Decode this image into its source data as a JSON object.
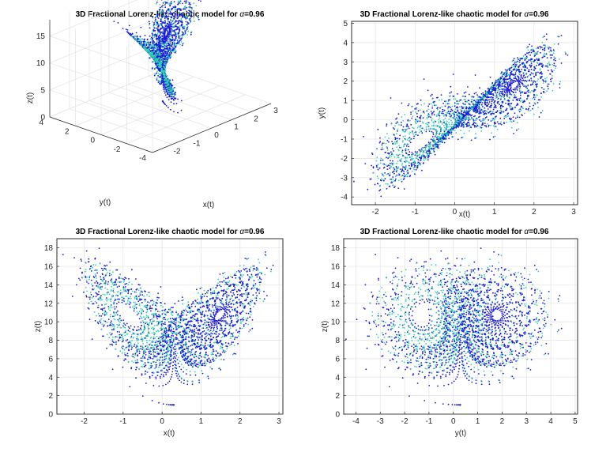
{
  "colors": {
    "blue": "#1a1ad8",
    "teal": "#2fd2b0",
    "grid": "#e3e3e3"
  },
  "chart_data": [
    {
      "id": "panel-3d",
      "type": "line",
      "projection": "3d",
      "title_prefix": "3D Fractional Lorenz-like chaotic model for ",
      "title_symbol": "α",
      "title_suffix": "=0.96",
      "xlabel": "x(t)",
      "ylabel": "y(t)",
      "zlabel": "z(t)",
      "xlim": [
        -3,
        3
      ],
      "ylim": [
        -4,
        4
      ],
      "zlim": [
        0,
        18
      ],
      "xticks": [
        "-2",
        "-1",
        "0",
        "1",
        "2",
        "3"
      ],
      "yticks": [
        "-4",
        "-2",
        "0",
        "2",
        "4"
      ],
      "zticks": [
        "0",
        "5",
        "10",
        "15"
      ],
      "grid": true
    },
    {
      "id": "panel-xy",
      "type": "scatter",
      "title_prefix": "3D Fractional Lorenz-like chaotic model for ",
      "title_symbol": "α",
      "title_suffix": "=0.96",
      "xlabel": "x(t)",
      "ylabel": "y(t)",
      "xlim": [
        -2.6,
        3.1
      ],
      "ylim": [
        -4.4,
        5.1
      ],
      "xticks": [
        -2,
        -1,
        0,
        1,
        2,
        3
      ],
      "yticks": [
        -4,
        -3,
        -2,
        -1,
        0,
        1,
        2,
        3,
        4,
        5
      ],
      "grid": true
    },
    {
      "id": "panel-xz",
      "type": "scatter",
      "title_prefix": "3D Fractional Lorenz-like chaotic model for ",
      "title_symbol": "α",
      "title_suffix": "=0.96",
      "xlabel": "x(t)",
      "ylabel": "z(t)",
      "xlim": [
        -2.7,
        3.1
      ],
      "ylim": [
        0,
        19
      ],
      "xticks": [
        -2,
        -1,
        0,
        1,
        2,
        3
      ],
      "yticks": [
        0,
        2,
        4,
        6,
        8,
        10,
        12,
        14,
        16,
        18
      ],
      "grid": true
    },
    {
      "id": "panel-yz",
      "type": "scatter",
      "title_prefix": "3D Fractional Lorenz-like chaotic model for ",
      "title_symbol": "α",
      "title_suffix": "=0.96",
      "xlabel": "y(t)",
      "ylabel": "z(t)",
      "xlim": [
        -4.5,
        5.1
      ],
      "ylim": [
        0,
        19
      ],
      "xticks": [
        -4,
        -3,
        -2,
        -1,
        0,
        1,
        2,
        3,
        4,
        5
      ],
      "yticks": [
        0,
        2,
        4,
        6,
        8,
        10,
        12,
        14,
        16,
        18
      ],
      "grid": true
    }
  ]
}
